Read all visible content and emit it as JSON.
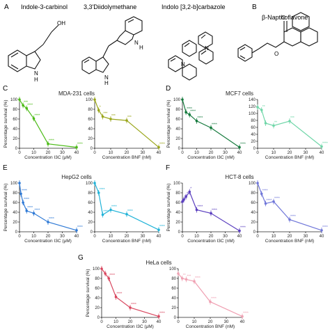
{
  "structures": [
    {
      "letter": "A",
      "name": "Indole-3-carbinol"
    },
    {
      "letter": "",
      "name": "3,3'Diidolymethane"
    },
    {
      "letter": "",
      "name": "Indolo [3,2-b]carbazole"
    },
    {
      "letter": "B",
      "name": "β-Napthoflavone"
    }
  ],
  "atom_labels": {
    "oh": "OH",
    "n": "N",
    "h": "H",
    "o": "O"
  },
  "chart_data": [
    {
      "panel": "C",
      "title": "MDA-231 cells",
      "type": "line",
      "color": "#4cbb17",
      "xlabel": "Concentration I3C (μM)",
      "ylabel": "Percentage survival (%)",
      "xlim": [
        0,
        40
      ],
      "ylim": [
        0,
        100
      ],
      "x": [
        0,
        2.5,
        5,
        10,
        20,
        40
      ],
      "values": [
        100,
        88,
        82,
        61,
        9,
        2
      ],
      "sig": [
        "",
        "***",
        "****",
        "****",
        "****",
        "****"
      ]
    },
    {
      "panel": "C",
      "title": "",
      "type": "line",
      "color": "#9aa61a",
      "xlabel": "Concentration BNF (nM)",
      "ylabel": "",
      "xlim": [
        0,
        40
      ],
      "ylim": [
        0,
        100
      ],
      "x": [
        0,
        2.5,
        5,
        10,
        20,
        40
      ],
      "values": [
        100,
        78,
        65,
        60,
        57,
        2
      ],
      "sig": [
        "",
        "*",
        "***",
        "***",
        "***",
        "****"
      ]
    },
    {
      "panel": "D",
      "title": "MCF7 cells",
      "type": "line",
      "color": "#157a3d",
      "xlabel": "Concentration I3C (nM)",
      "ylabel": "Percentage survival (%)",
      "xlim": [
        0,
        40
      ],
      "ylim": [
        0,
        100
      ],
      "x": [
        0,
        2.5,
        5,
        10,
        20,
        40
      ],
      "values": [
        100,
        74,
        69,
        56,
        42,
        2
      ],
      "sig": [
        "",
        "****",
        "****",
        "****",
        "****",
        "****"
      ]
    },
    {
      "panel": "D",
      "title": "",
      "type": "line",
      "color": "#6fd6a8",
      "xlabel": "Concentration BNF (nM)",
      "ylabel": "",
      "xlim": [
        0,
        40
      ],
      "ylim": [
        0,
        140
      ],
      "x": [
        0,
        2.5,
        5,
        10,
        20,
        40
      ],
      "values": [
        118,
        110,
        72,
        65,
        78,
        5
      ],
      "sig": [
        "",
        "**",
        "",
        "**",
        "***",
        "****"
      ]
    },
    {
      "panel": "E",
      "title": "HepG2 cells",
      "type": "line",
      "color": "#2f7ad6",
      "xlabel": "Concentration I3C (μM)",
      "ylabel": "Percentage survival (%)",
      "xlim": [
        0,
        40
      ],
      "ylim": [
        0,
        100
      ],
      "x": [
        0,
        1,
        2.5,
        5,
        10,
        20,
        40
      ],
      "values": [
        100,
        78,
        60,
        43,
        38,
        20,
        3
      ],
      "sig": [
        "",
        "****",
        "****",
        "****",
        "****",
        "****",
        "****"
      ]
    },
    {
      "panel": "E",
      "title": "",
      "type": "line",
      "color": "#21b3d8",
      "xlabel": "Concentration BNF (nM)",
      "ylabel": "",
      "xlim": [
        0,
        40
      ],
      "ylim": [
        0,
        100
      ],
      "x": [
        0,
        2.5,
        5,
        10,
        20,
        40
      ],
      "values": [
        100,
        80,
        35,
        45,
        36,
        4
      ],
      "sig": [
        "",
        "****",
        "****",
        "****",
        "****",
        "****"
      ]
    },
    {
      "panel": "F",
      "title": "HCT-8 cells",
      "type": "line",
      "color": "#5b3fbf",
      "xlabel": "Concentration I3C (nM)",
      "ylabel": "Percentage survival (%)",
      "xlim": [
        0,
        40
      ],
      "ylim": [
        0,
        100
      ],
      "x": [
        0,
        1,
        2.5,
        5,
        10,
        20,
        40
      ],
      "values": [
        62,
        66,
        72,
        82,
        45,
        38,
        2
      ],
      "sig": [
        "",
        "*",
        "*",
        "*",
        "****",
        "****",
        "****"
      ]
    },
    {
      "panel": "F",
      "title": "",
      "type": "line",
      "color": "#7077d9",
      "xlabel": "Concentration BNF (nM)",
      "ylabel": "",
      "xlim": [
        0,
        40
      ],
      "ylim": [
        0,
        100
      ],
      "x": [
        0,
        2.5,
        5,
        10,
        20,
        40
      ],
      "values": [
        100,
        78,
        58,
        62,
        25,
        3
      ],
      "sig": [
        "",
        "****",
        "****",
        "****",
        "****",
        "****"
      ]
    },
    {
      "panel": "G",
      "title": "HeLa cells",
      "type": "line",
      "color": "#d9475f",
      "xlabel": "Concentration I3C (μM)",
      "ylabel": "Percentage survival (%)",
      "xlim": [
        0,
        40
      ],
      "ylim": [
        0,
        100
      ],
      "x": [
        0,
        2.5,
        5,
        10,
        20,
        40
      ],
      "values": [
        100,
        90,
        80,
        42,
        20,
        2
      ],
      "sig": [
        "",
        "",
        "****",
        "****",
        "****",
        "****"
      ]
    },
    {
      "panel": "G",
      "title": "",
      "type": "line",
      "color": "#f0a1b3",
      "xlabel": "Concentration BNF (nM)",
      "ylabel": "",
      "xlim": [
        0,
        40
      ],
      "ylim": [
        0,
        100
      ],
      "x": [
        0,
        2.5,
        5,
        10,
        20,
        40
      ],
      "values": [
        90,
        80,
        78,
        74,
        32,
        2
      ],
      "sig": [
        "",
        "**",
        "***",
        "****",
        "****",
        "****"
      ]
    }
  ]
}
